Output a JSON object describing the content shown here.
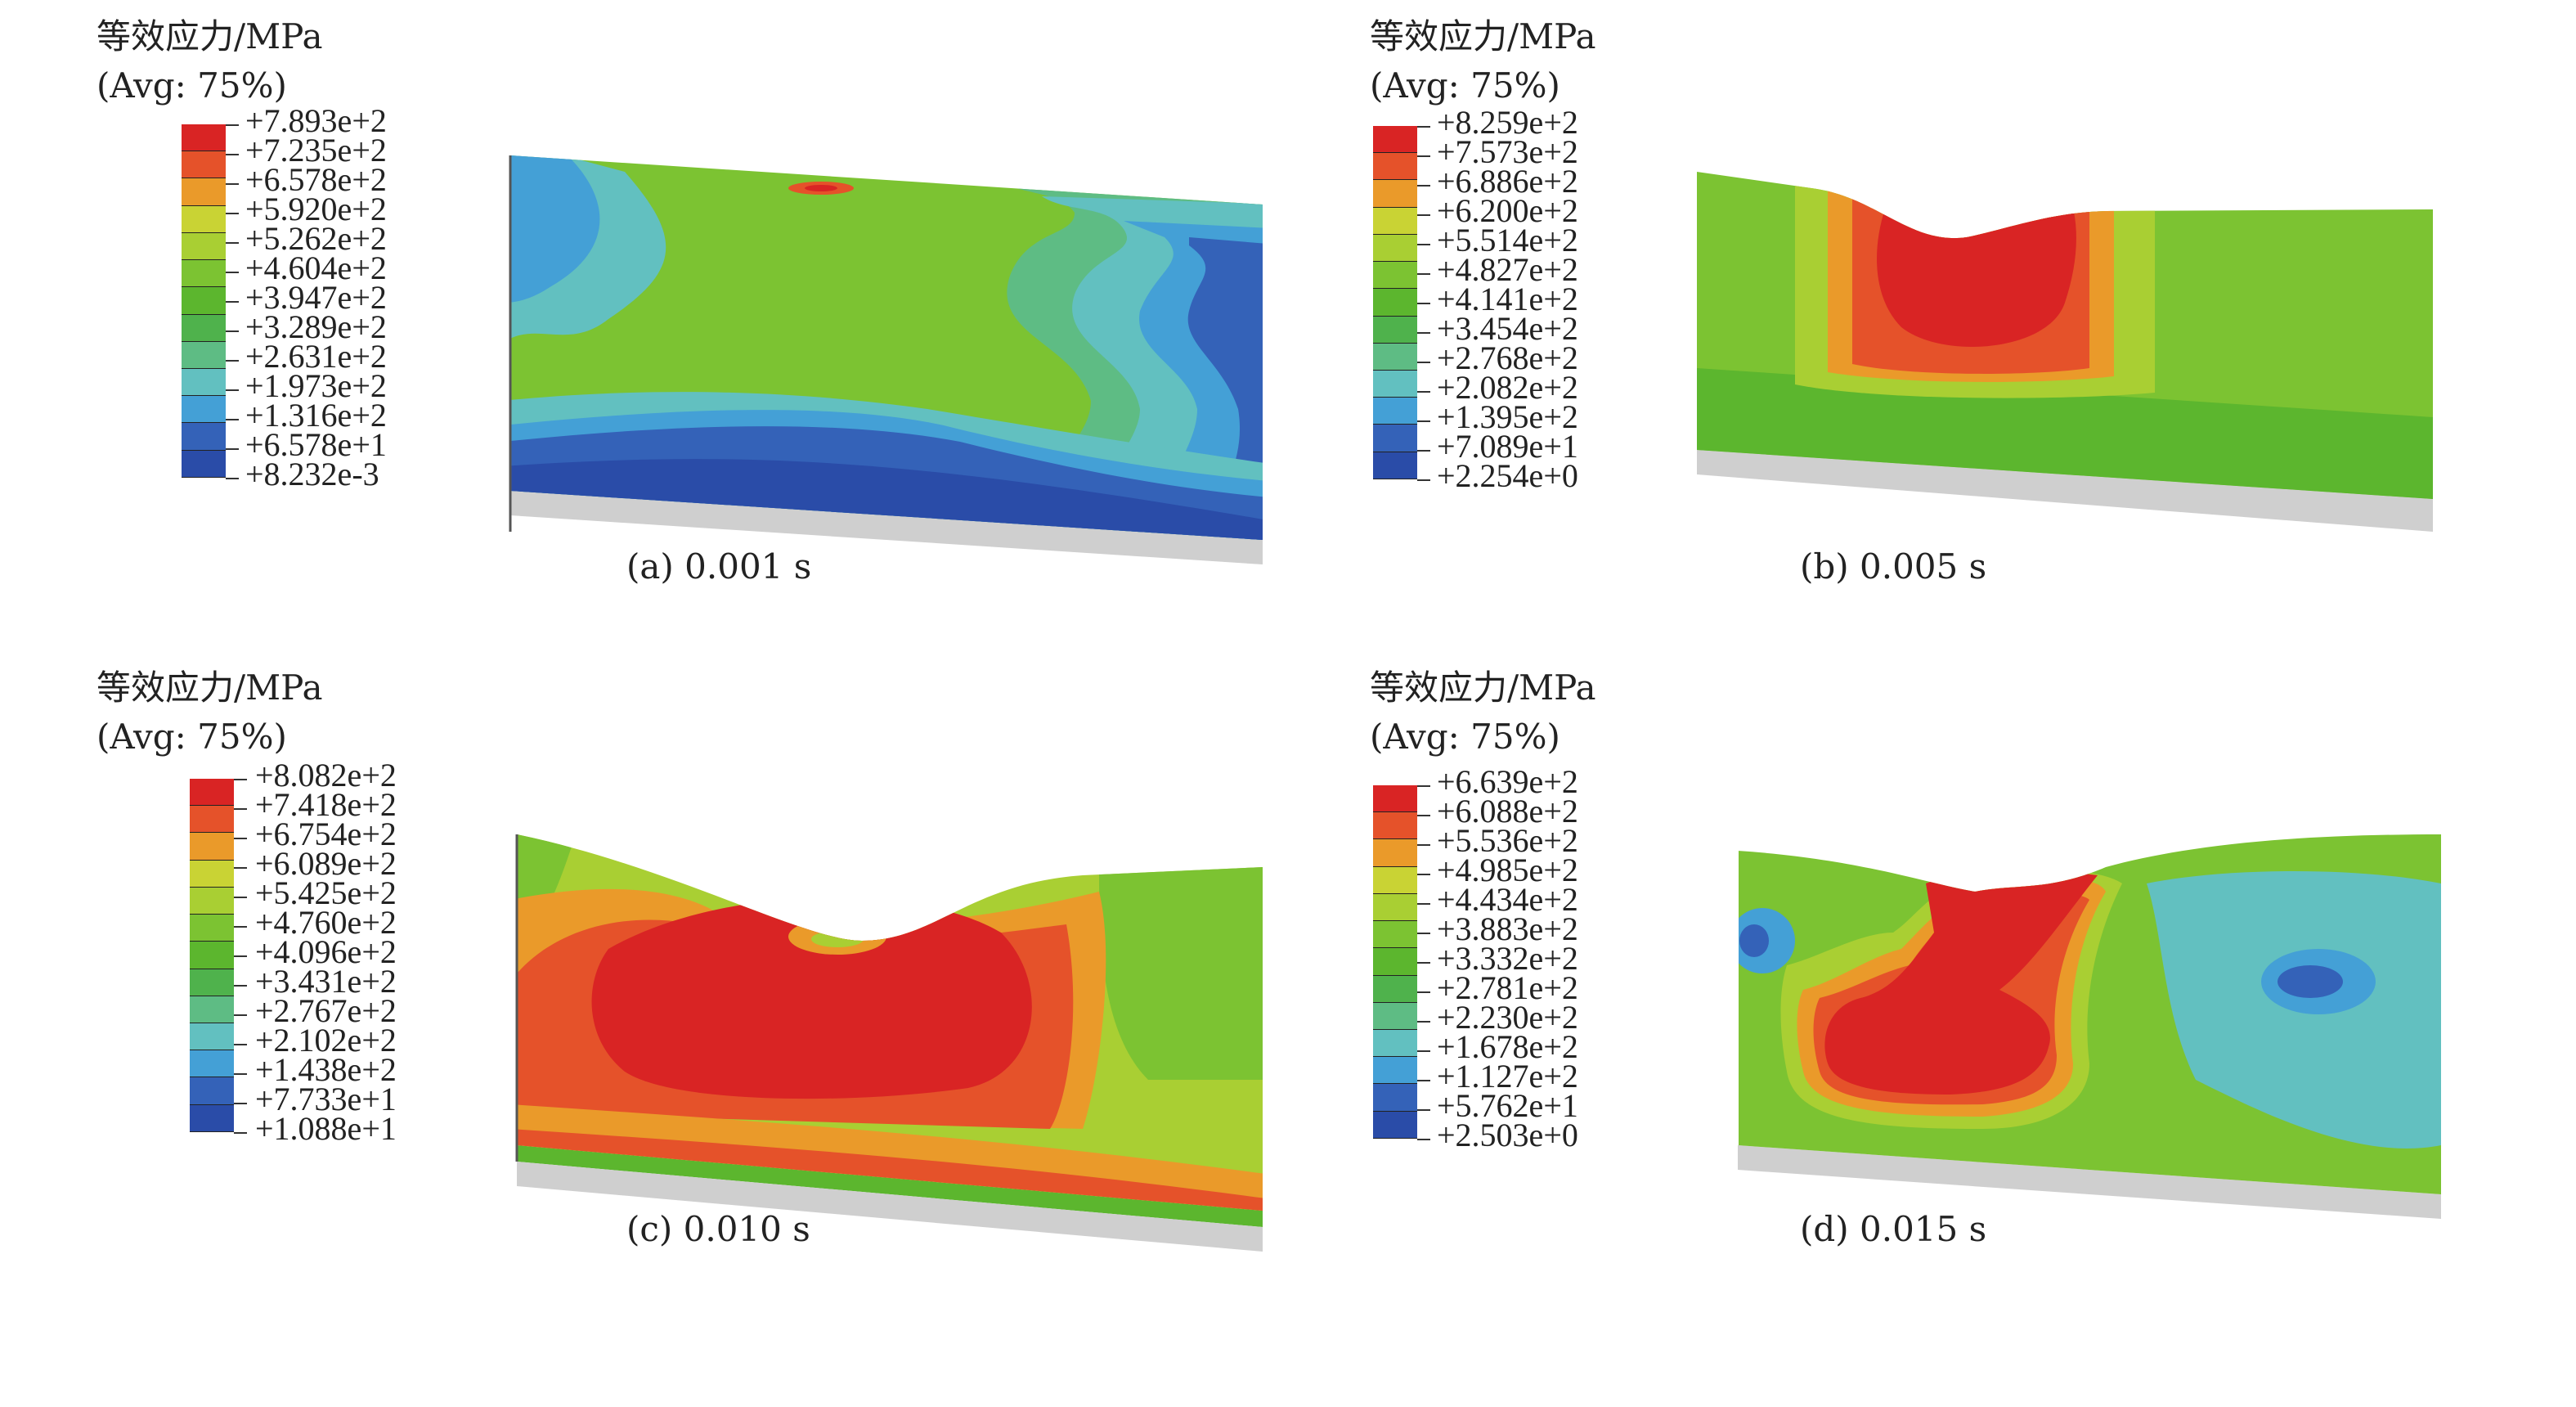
{
  "panels": [
    {
      "legend_title": "等效应力/MPa",
      "legend_sub": "(Avg: 75%)",
      "levels": [
        "+7.893e+2",
        "+7.235e+2",
        "+6.578e+2",
        "+5.920e+2",
        "+5.262e+2",
        "+4.604e+2",
        "+3.947e+2",
        "+3.289e+2",
        "+2.631e+2",
        "+1.973e+2",
        "+1.316e+2",
        "+6.578e+1",
        "+8.232e-3"
      ],
      "caption": "(a) 0.001 s"
    },
    {
      "legend_title": "等效应力/MPa",
      "legend_sub": "(Avg: 75%)",
      "levels": [
        "+8.259e+2",
        "+7.573e+2",
        "+6.886e+2",
        "+6.200e+2",
        "+5.514e+2",
        "+4.827e+2",
        "+4.141e+2",
        "+3.454e+2",
        "+2.768e+2",
        "+2.082e+2",
        "+1.395e+2",
        "+7.089e+1",
        "+2.254e+0"
      ],
      "caption": "(b) 0.005 s"
    },
    {
      "legend_title": "等效应力/MPa",
      "legend_sub": "(Avg: 75%)",
      "levels": [
        "+8.082e+2",
        "+7.418e+2",
        "+6.754e+2",
        "+6.089e+2",
        "+5.425e+2",
        "+4.760e+2",
        "+4.096e+2",
        "+3.431e+2",
        "+2.767e+2",
        "+2.102e+2",
        "+1.438e+2",
        "+7.733e+1",
        "+1.088e+1"
      ],
      "caption": "(c) 0.010 s"
    },
    {
      "legend_title": "等效应力/MPa",
      "legend_sub": "(Avg: 75%)",
      "levels": [
        "+6.639e+2",
        "+6.088e+2",
        "+5.536e+2",
        "+4.985e+2",
        "+4.434e+2",
        "+3.883e+2",
        "+3.332e+2",
        "+2.781e+2",
        "+2.230e+2",
        "+1.678e+2",
        "+1.127e+2",
        "+5.762e+1",
        "+2.503e+0"
      ],
      "caption": "(d) 0.015 s"
    }
  ],
  "colormap": [
    "#d92424",
    "#e5522a",
    "#ea9a2a",
    "#c9d334",
    "#a9cf33",
    "#7cc332",
    "#5cb62e",
    "#4fb24c",
    "#5ebc84",
    "#62c0c0",
    "#44a0d6",
    "#3462b8",
    "#2a4ca8"
  ],
  "colors": {
    "surface_gray": "#cfcfcf"
  }
}
